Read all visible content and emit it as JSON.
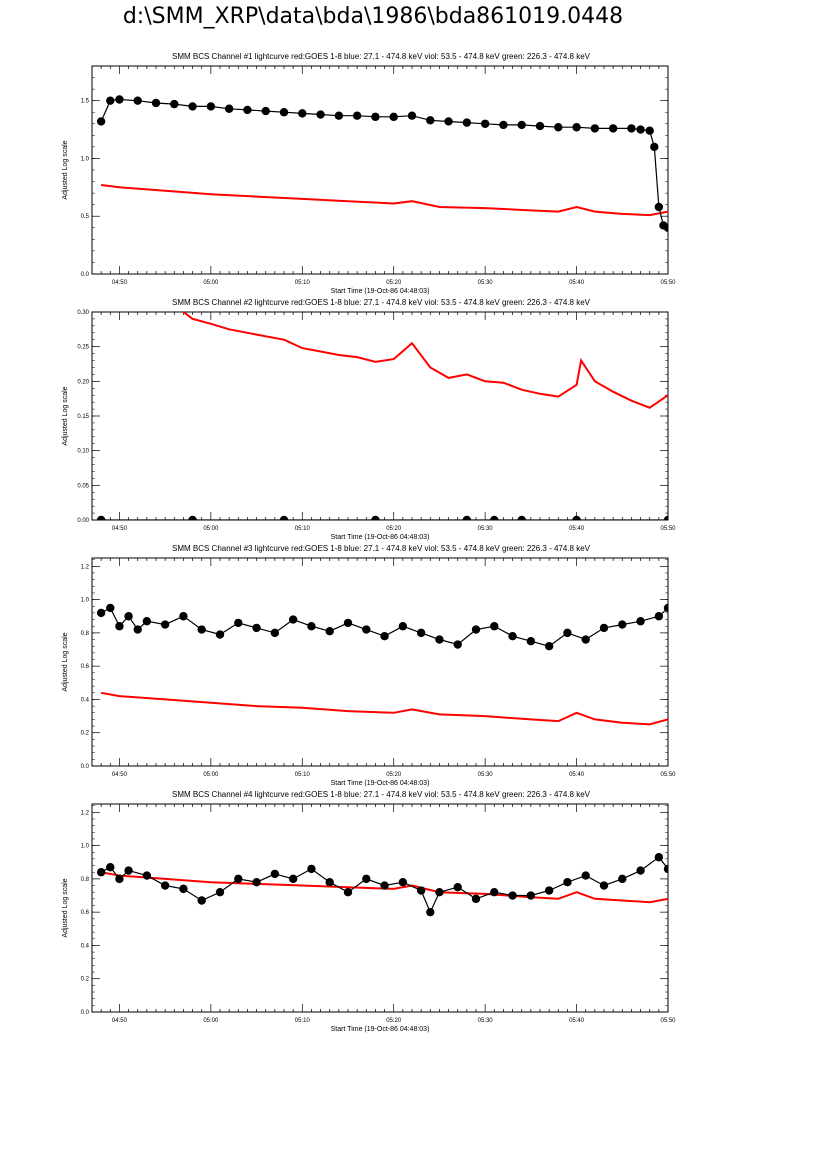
{
  "page": {
    "title": "d:\\SMM_XRP\\data\\bda\\1986\\bda861019.0448"
  },
  "colors": {
    "goes": "#ff0000",
    "bcs": "#000000",
    "axes": "#000000"
  },
  "chart_data": [
    {
      "type": "line",
      "title": "SMM BCS Channel #1 lightcurve  red:GOES 1-8  blue: 27.1 - 474.8 keV  viol: 53.5 - 474.8 keV  green: 226.3 - 474.8 keV",
      "xlabel": "Start Time (19-Oct-86 04:48:03)",
      "ylabel": "Adjusted Log scale",
      "xlim": [
        "04:47",
        "05:50"
      ],
      "ylim": [
        0.0,
        1.8
      ],
      "yticks": [
        "0.0",
        "0.5",
        "1.0",
        "1.5"
      ],
      "xticks": [
        "04:50",
        "05:00",
        "05:10",
        "05:20",
        "05:30",
        "05:40",
        "05:50"
      ],
      "series": [
        {
          "color": "#000000",
          "marker": "circle",
          "x": [
            "04:48",
            "04:49",
            "04:50",
            "04:52",
            "04:54",
            "04:56",
            "04:58",
            "05:00",
            "05:02",
            "05:04",
            "05:06",
            "05:08",
            "05:10",
            "05:12",
            "05:14",
            "05:16",
            "05:18",
            "05:20",
            "05:22",
            "05:24",
            "05:26",
            "05:28",
            "05:30",
            "05:32",
            "05:34",
            "05:36",
            "05:38",
            "05:40",
            "05:42",
            "05:44",
            "05:46",
            "05:47",
            "05:48",
            "05:48.5",
            "05:49",
            "05:49.5",
            "05:50"
          ],
          "values": [
            1.32,
            1.5,
            1.51,
            1.5,
            1.48,
            1.47,
            1.45,
            1.45,
            1.43,
            1.42,
            1.41,
            1.4,
            1.39,
            1.38,
            1.37,
            1.37,
            1.36,
            1.36,
            1.37,
            1.33,
            1.32,
            1.31,
            1.3,
            1.29,
            1.29,
            1.28,
            1.27,
            1.27,
            1.26,
            1.26,
            1.26,
            1.25,
            1.24,
            1.1,
            0.58,
            0.42,
            0.4
          ]
        },
        {
          "color": "#ff0000",
          "marker": "none",
          "x": [
            "04:48",
            "04:50",
            "04:55",
            "05:00",
            "05:05",
            "05:10",
            "05:15",
            "05:20",
            "05:22",
            "05:25",
            "05:30",
            "05:35",
            "05:38",
            "05:40",
            "05:42",
            "05:45",
            "05:48",
            "05:50"
          ],
          "values": [
            0.77,
            0.75,
            0.72,
            0.69,
            0.67,
            0.65,
            0.63,
            0.61,
            0.63,
            0.58,
            0.57,
            0.55,
            0.54,
            0.58,
            0.54,
            0.52,
            0.51,
            0.54
          ]
        }
      ]
    },
    {
      "type": "line",
      "title": "SMM BCS Channel #2 lightcurve  red:GOES 1-8  blue: 27.1 - 474.8 keV  viol: 53.5 - 474.8 keV  green: 226.3 - 474.8 keV",
      "xlabel": "Start Time (19-Oct-86 04:48:03)",
      "ylabel": "Adjusted Log scale",
      "xlim": [
        "04:47",
        "05:50"
      ],
      "ylim": [
        0.0,
        0.3
      ],
      "yticks": [
        "0.00",
        "0.05",
        "0.10",
        "0.15",
        "0.20",
        "0.25",
        "0.30"
      ],
      "xticks": [
        "04:50",
        "05:00",
        "05:10",
        "05:20",
        "05:30",
        "05:40",
        "05:50"
      ],
      "series": [
        {
          "color": "#000000",
          "marker": "circle",
          "x": [
            "04:48",
            "04:58",
            "05:08",
            "05:18",
            "05:28",
            "05:31",
            "05:34",
            "05:40",
            "05:50"
          ],
          "values": [
            0.0,
            0.0,
            0.0,
            0.0,
            0.0,
            0.0,
            0.0,
            0.0,
            0.0
          ]
        },
        {
          "color": "#ff0000",
          "marker": "none",
          "x": [
            "04:57",
            "04:58",
            "05:00",
            "05:02",
            "05:04",
            "05:06",
            "05:08",
            "05:10",
            "05:12",
            "05:14",
            "05:16",
            "05:18",
            "05:20",
            "05:22",
            "05:24",
            "05:26",
            "05:28",
            "05:30",
            "05:32",
            "05:34",
            "05:36",
            "05:38",
            "05:40",
            "05:40.5",
            "05:42",
            "05:44",
            "05:46",
            "05:48",
            "05:50"
          ],
          "values": [
            0.3,
            0.29,
            0.283,
            0.275,
            0.27,
            0.265,
            0.26,
            0.248,
            0.243,
            0.238,
            0.235,
            0.228,
            0.232,
            0.255,
            0.22,
            0.205,
            0.21,
            0.2,
            0.198,
            0.188,
            0.182,
            0.178,
            0.195,
            0.23,
            0.2,
            0.185,
            0.172,
            0.162,
            0.18
          ]
        }
      ]
    },
    {
      "type": "line",
      "title": "SMM BCS Channel #3 lightcurve  red:GOES 1-8  blue: 27.1 - 474.8 keV  viol: 53.5 - 474.8 keV  green: 226.3 - 474.8 keV",
      "xlabel": "Start Time (19-Oct-86 04:48:03)",
      "ylabel": "Adjusted Log scale",
      "xlim": [
        "04:47",
        "05:50"
      ],
      "ylim": [
        0.0,
        1.25
      ],
      "yticks": [
        "0.0",
        "0.2",
        "0.4",
        "0.6",
        "0.8",
        "1.0",
        "1.2"
      ],
      "xticks": [
        "04:50",
        "05:00",
        "05:10",
        "05:20",
        "05:30",
        "05:40",
        "05:50"
      ],
      "series": [
        {
          "color": "#000000",
          "marker": "circle",
          "x": [
            "04:48",
            "04:49",
            "04:50",
            "04:51",
            "04:52",
            "04:53",
            "04:55",
            "04:57",
            "04:59",
            "05:01",
            "05:03",
            "05:05",
            "05:07",
            "05:09",
            "05:11",
            "05:13",
            "05:15",
            "05:17",
            "05:19",
            "05:21",
            "05:23",
            "05:25",
            "05:27",
            "05:29",
            "05:31",
            "05:33",
            "05:35",
            "05:37",
            "05:39",
            "05:41",
            "05:43",
            "05:45",
            "05:47",
            "05:49",
            "05:50"
          ],
          "values": [
            0.92,
            0.95,
            0.84,
            0.9,
            0.82,
            0.87,
            0.85,
            0.9,
            0.82,
            0.79,
            0.86,
            0.83,
            0.8,
            0.88,
            0.84,
            0.81,
            0.86,
            0.82,
            0.78,
            0.84,
            0.8,
            0.76,
            0.73,
            0.82,
            0.84,
            0.78,
            0.75,
            0.72,
            0.8,
            0.76,
            0.83,
            0.85,
            0.87,
            0.9,
            0.95
          ]
        },
        {
          "color": "#ff0000",
          "marker": "none",
          "x": [
            "04:48",
            "04:50",
            "04:55",
            "05:00",
            "05:05",
            "05:10",
            "05:15",
            "05:20",
            "05:22",
            "05:25",
            "05:30",
            "05:35",
            "05:38",
            "05:40",
            "05:42",
            "05:45",
            "05:48",
            "05:50"
          ],
          "values": [
            0.44,
            0.42,
            0.4,
            0.38,
            0.36,
            0.35,
            0.33,
            0.32,
            0.34,
            0.31,
            0.3,
            0.28,
            0.27,
            0.32,
            0.28,
            0.26,
            0.25,
            0.28
          ]
        }
      ]
    },
    {
      "type": "line",
      "title": "SMM BCS Channel #4 lightcurve  red:GOES 1-8  blue: 27.1 - 474.8 keV  viol: 53.5 - 474.8 keV  green: 226.3 - 474.8 keV",
      "xlabel": "Start Time (19-Oct-86 04:48:03)",
      "ylabel": "Adjusted Log scale",
      "xlim": [
        "04:47",
        "05:50"
      ],
      "ylim": [
        0.0,
        1.25
      ],
      "yticks": [
        "0.0",
        "0.2",
        "0.4",
        "0.6",
        "0.8",
        "1.0",
        "1.2"
      ],
      "xticks": [
        "04:50",
        "05:00",
        "05:10",
        "05:20",
        "05:30",
        "05:40",
        "05:50"
      ],
      "series": [
        {
          "color": "#000000",
          "marker": "circle",
          "x": [
            "04:48",
            "04:49",
            "04:50",
            "04:51",
            "04:53",
            "04:55",
            "04:57",
            "04:59",
            "05:01",
            "05:03",
            "05:05",
            "05:07",
            "05:09",
            "05:11",
            "05:13",
            "05:15",
            "05:17",
            "05:19",
            "05:21",
            "05:23",
            "05:24",
            "05:25",
            "05:27",
            "05:29",
            "05:31",
            "05:33",
            "05:35",
            "05:37",
            "05:39",
            "05:41",
            "05:43",
            "05:45",
            "05:47",
            "05:49",
            "05:50"
          ],
          "values": [
            0.84,
            0.87,
            0.8,
            0.85,
            0.82,
            0.76,
            0.74,
            0.67,
            0.72,
            0.8,
            0.78,
            0.83,
            0.8,
            0.86,
            0.78,
            0.72,
            0.8,
            0.76,
            0.78,
            0.73,
            0.6,
            0.72,
            0.75,
            0.68,
            0.72,
            0.7,
            0.7,
            0.73,
            0.78,
            0.82,
            0.76,
            0.8,
            0.85,
            0.93,
            0.86
          ]
        },
        {
          "color": "#ff0000",
          "marker": "none",
          "x": [
            "04:48",
            "04:50",
            "04:55",
            "05:00",
            "05:05",
            "05:10",
            "05:15",
            "05:20",
            "05:22",
            "05:25",
            "05:30",
            "05:35",
            "05:38",
            "05:40",
            "05:42",
            "05:45",
            "05:48",
            "05:50"
          ],
          "values": [
            0.84,
            0.82,
            0.8,
            0.78,
            0.77,
            0.76,
            0.75,
            0.74,
            0.76,
            0.72,
            0.71,
            0.69,
            0.68,
            0.72,
            0.68,
            0.67,
            0.66,
            0.68
          ]
        }
      ]
    }
  ]
}
